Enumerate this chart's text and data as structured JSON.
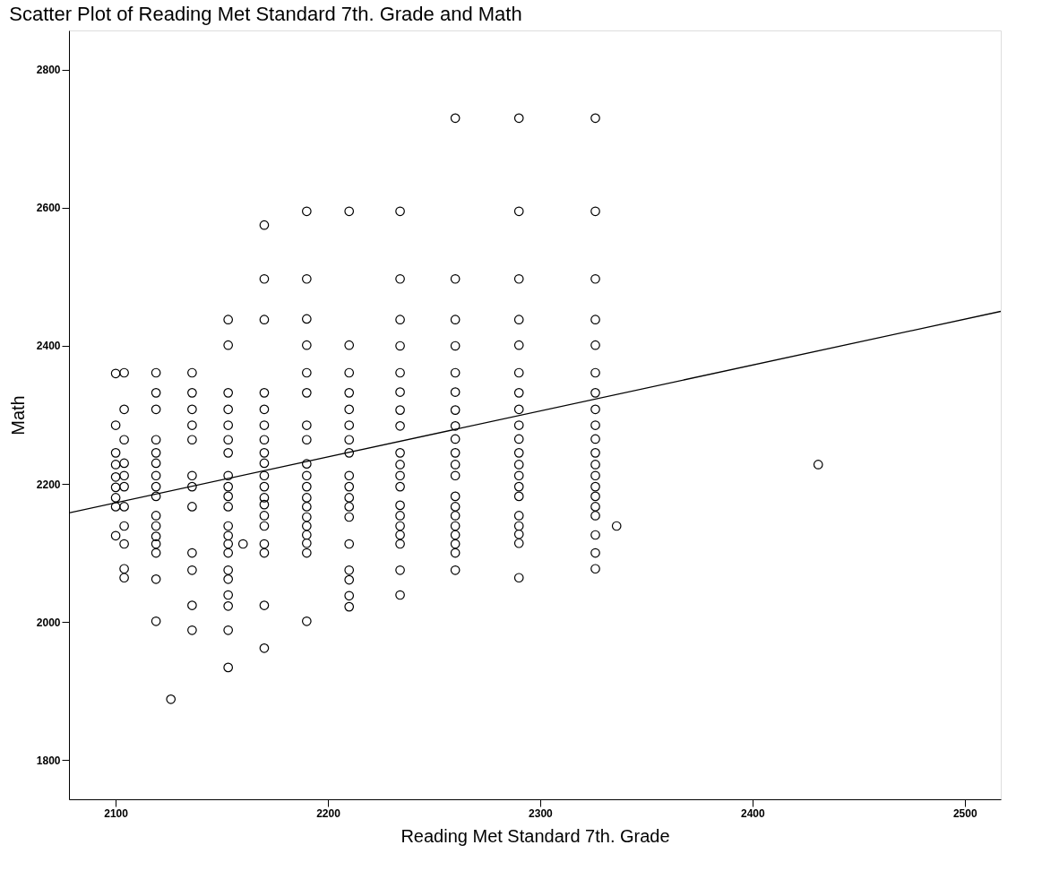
{
  "chart_data": {
    "type": "scatter",
    "title": "Scatter Plot of Reading Met Standard 7th. Grade and Math",
    "xlabel": "Reading Met Standard 7th. Grade",
    "ylabel": "Math",
    "xlim": [
      2078,
      2517
    ],
    "ylim": [
      1743,
      2857
    ],
    "xticks": [
      2100,
      2200,
      2300,
      2400,
      2500
    ],
    "yticks": [
      1800,
      2000,
      2200,
      2400,
      2600,
      2800
    ],
    "grid": false,
    "marker": "circle",
    "series": [
      {
        "color": "#000000",
        "x": [
          2100,
          2100,
          2100,
          2100,
          2100,
          2100,
          2100,
          2100,
          2100,
          2104,
          2104,
          2104,
          2104,
          2104,
          2104,
          2104,
          2104,
          2104,
          2104,
          2104,
          2119,
          2119,
          2119,
          2119,
          2119,
          2119,
          2119,
          2119,
          2119,
          2119,
          2119,
          2119,
          2119,
          2119,
          2119,
          2119,
          2126,
          2136,
          2136,
          2136,
          2136,
          2136,
          2136,
          2136,
          2136,
          2136,
          2136,
          2136,
          2136,
          2153,
          2153,
          2153,
          2153,
          2153,
          2153,
          2153,
          2153,
          2153,
          2153,
          2153,
          2153,
          2153,
          2153,
          2153,
          2153,
          2153,
          2153,
          2153,
          2153,
          2153,
          2160,
          2170,
          2170,
          2170,
          2170,
          2170,
          2170,
          2170,
          2170,
          2170,
          2170,
          2170,
          2170,
          2170,
          2170,
          2170,
          2170,
          2170,
          2170,
          2170,
          2190,
          2190,
          2190,
          2190,
          2190,
          2190,
          2190,
          2190,
          2190,
          2190,
          2190,
          2190,
          2190,
          2190,
          2190,
          2190,
          2190,
          2190,
          2190,
          2210,
          2210,
          2210,
          2210,
          2210,
          2210,
          2210,
          2210,
          2210,
          2210,
          2210,
          2210,
          2210,
          2210,
          2210,
          2210,
          2210,
          2210,
          2234,
          2234,
          2234,
          2234,
          2234,
          2234,
          2234,
          2234,
          2234,
          2234,
          2234,
          2234,
          2234,
          2234,
          2234,
          2234,
          2234,
          2234,
          2234,
          2260,
          2260,
          2260,
          2260,
          2260,
          2260,
          2260,
          2260,
          2260,
          2260,
          2260,
          2260,
          2260,
          2260,
          2260,
          2260,
          2260,
          2260,
          2260,
          2260,
          2290,
          2290,
          2290,
          2290,
          2290,
          2290,
          2290,
          2290,
          2290,
          2290,
          2290,
          2290,
          2290,
          2290,
          2290,
          2290,
          2290,
          2290,
          2290,
          2290,
          2326,
          2326,
          2326,
          2326,
          2326,
          2326,
          2326,
          2326,
          2326,
          2326,
          2326,
          2326,
          2326,
          2326,
          2326,
          2326,
          2326,
          2326,
          2326,
          2326,
          2336,
          2431
        ],
        "values": [
          2360,
          2285,
          2245,
          2228,
          2210,
          2195,
          2180,
          2167,
          2125,
          2361,
          2308,
          2264,
          2230,
          2212,
          2196,
          2167,
          2139,
          2113,
          2077,
          2064,
          2361,
          2332,
          2308,
          2264,
          2245,
          2230,
          2212,
          2196,
          2182,
          2154,
          2139,
          2124,
          2113,
          2100,
          2062,
          2001,
          1888,
          2361,
          2332,
          2308,
          2285,
          2264,
          2212,
          2196,
          2167,
          2100,
          2075,
          2024,
          1988,
          2438,
          2401,
          2332,
          2308,
          2285,
          2264,
          2245,
          2212,
          2196,
          2182,
          2167,
          2139,
          2125,
          2113,
          2100,
          2075,
          2062,
          2039,
          2023,
          1988,
          1934,
          2113,
          2575,
          2497,
          2438,
          2332,
          2308,
          2285,
          2264,
          2245,
          2230,
          2212,
          2196,
          2180,
          2170,
          2154,
          2139,
          2113,
          2100,
          2024,
          1962,
          2595,
          2497,
          2439,
          2401,
          2361,
          2332,
          2285,
          2264,
          2229,
          2212,
          2196,
          2180,
          2167,
          2152,
          2139,
          2126,
          2114,
          2100,
          2001,
          2595,
          2401,
          2361,
          2332,
          2308,
          2285,
          2264,
          2245,
          2212,
          2196,
          2180,
          2167,
          2152,
          2113,
          2075,
          2061,
          2038,
          2022,
          2595,
          2497,
          2438,
          2400,
          2361,
          2333,
          2307,
          2284,
          2245,
          2228,
          2212,
          2196,
          2169,
          2154,
          2139,
          2126,
          2113,
          2075,
          2039,
          2730,
          2497,
          2438,
          2400,
          2361,
          2333,
          2307,
          2284,
          2265,
          2245,
          2228,
          2212,
          2182,
          2167,
          2154,
          2139,
          2126,
          2113,
          2100,
          2075,
          2730,
          2595,
          2497,
          2438,
          2401,
          2361,
          2332,
          2308,
          2285,
          2265,
          2245,
          2228,
          2212,
          2196,
          2182,
          2154,
          2139,
          2127,
          2114,
          2064,
          2730,
          2595,
          2497,
          2438,
          2401,
          2361,
          2332,
          2308,
          2285,
          2265,
          2245,
          2228,
          2212,
          2196,
          2182,
          2167,
          2154,
          2126,
          2100,
          2077,
          2139,
          2228
        ]
      },
      {
        "type": "line",
        "marker": "none",
        "color": "#000000",
        "x": [
          2078,
          2517
        ],
        "values": [
          2158,
          2450
        ]
      }
    ]
  }
}
